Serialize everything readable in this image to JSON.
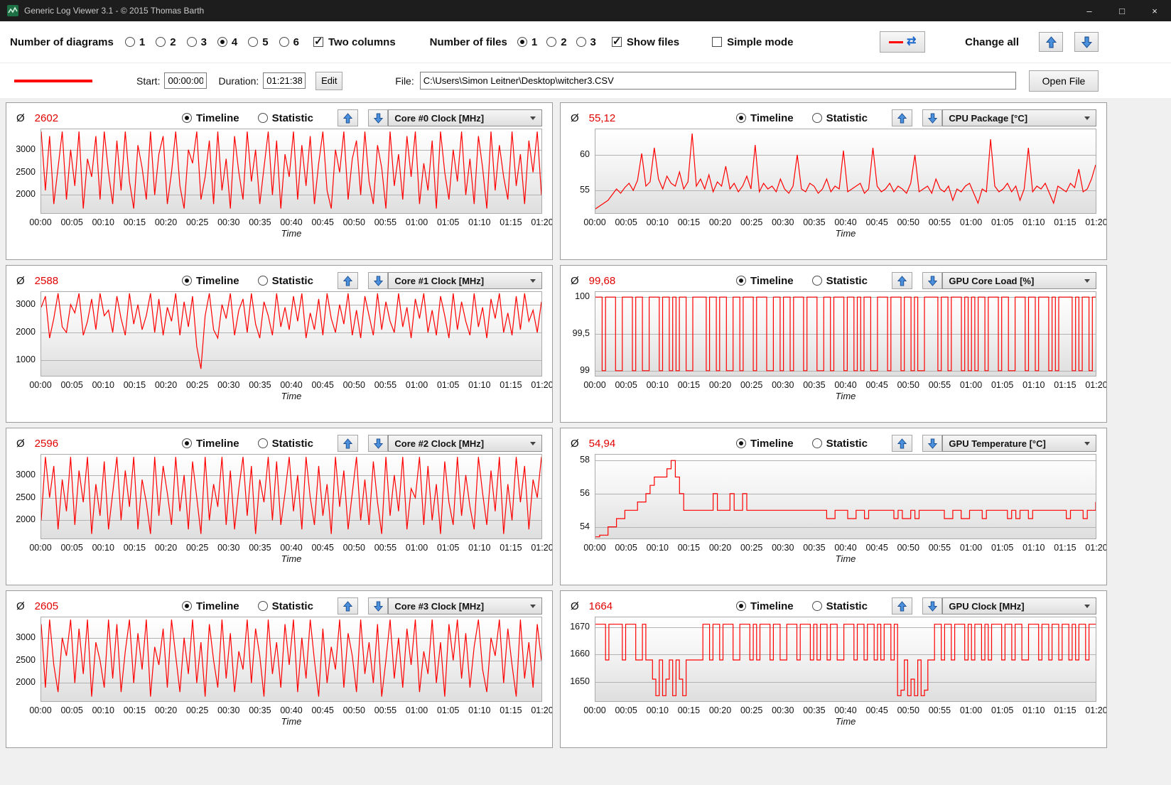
{
  "window": {
    "title": "Generic Log Viewer 3.1 - © 2015 Thomas Barth",
    "controls": {
      "minimize": "–",
      "maximize": "□",
      "close": "×"
    }
  },
  "icons": {
    "change_all_sync": "⇄"
  },
  "toolbar": {
    "diagrams_label": "Number of diagrams",
    "diagram_options": [
      "1",
      "2",
      "3",
      "4",
      "5",
      "6"
    ],
    "diagrams_selected": "4",
    "two_columns": "Two columns",
    "files_label": "Number of files",
    "file_options": [
      "1",
      "2",
      "3"
    ],
    "files_selected": "1",
    "show_files": "Show files",
    "simple_mode": "Simple mode",
    "change_all": "Change all"
  },
  "filebar": {
    "start_label": "Start:",
    "start_value": "00:00:00",
    "duration_label": "Duration:",
    "duration_value": "01:21:38",
    "edit_button": "Edit",
    "file_label": "File:",
    "file_path": "C:\\Users\\Simon Leitner\\Desktop\\witcher3.CSV",
    "open_button": "Open File",
    "file_color": "#ff0000"
  },
  "panel_labels": {
    "avg_symbol": "Ø",
    "timeline": "Timeline",
    "statistic": "Statistic"
  },
  "chart_common": {
    "series_color": "#ff0000",
    "xlabel": "Time",
    "x_ticks": [
      "00:00",
      "00:05",
      "00:10",
      "00:15",
      "00:20",
      "00:25",
      "00:30",
      "00:35",
      "00:40",
      "00:45",
      "00:50",
      "00:55",
      "01:00",
      "01:05",
      "01:10",
      "01:15",
      "01:20"
    ]
  },
  "chart_data": [
    {
      "type": "line",
      "metric": "Core #0 Clock [MHz]",
      "average": "2602",
      "y_min": 1600,
      "y_max": 3450,
      "step": false,
      "y_ticks": [
        {
          "v": 3000,
          "label": "3000"
        },
        {
          "v": 2500,
          "label": "2500"
        },
        {
          "v": 2000,
          "label": "2000"
        }
      ],
      "values": [
        3400,
        2100,
        3300,
        1800,
        2600,
        3400,
        1900,
        3000,
        2200,
        3400,
        1700,
        2800,
        2400,
        3300,
        1900,
        3400,
        2500,
        1800,
        3200,
        2100,
        3400,
        2300,
        1700,
        3100,
        2600,
        1900,
        3400,
        2000,
        2900,
        3300,
        1800,
        2500,
        3400,
        2200,
        1700,
        3000,
        2700,
        3400,
        1900,
        2400,
        3200,
        1800,
        3400,
        2100,
        2800,
        1700,
        3300,
        2500,
        1900,
        3400,
        2300,
        3000,
        1800,
        2600,
        3400,
        2000,
        3200,
        1700,
        2900,
        2400,
        3400,
        1900,
        3100,
        2200,
        3300,
        1800,
        2700,
        3400,
        2100,
        1700,
        3000,
        2500,
        3400,
        1900,
        2800,
        3200,
        2000,
        3400,
        2300,
        1800,
        3100,
        2600,
        1700,
        3400,
        2200,
        2900,
        1900,
        3300,
        2400,
        3400,
        1800,
        2700,
        2100,
        3200,
        1700,
        3400,
        2500,
        1900,
        3000,
        2300,
        3400,
        2000,
        2800,
        1800,
        3300,
        2600,
        1700,
        3400,
        2100,
        3100,
        2400,
        1900,
        3400,
        2200,
        2900,
        1800,
        3200,
        2500,
        3400,
        2000
      ]
    },
    {
      "type": "line",
      "metric": "CPU Package [°C]",
      "average": "55,12",
      "y_min": 51.8,
      "y_max": 63.6,
      "step": false,
      "y_ticks": [
        {
          "v": 60,
          "label": "60"
        },
        {
          "v": 55,
          "label": "55"
        }
      ],
      "values": [
        52.4,
        52.8,
        53.2,
        53.6,
        54.4,
        55.2,
        54.6,
        55.4,
        56.0,
        55.0,
        56.4,
        60.2,
        55.6,
        56.2,
        61.0,
        56.6,
        55.2,
        57.0,
        56.0,
        55.6,
        57.6,
        55.2,
        56.2,
        63.0,
        55.6,
        56.6,
        55.2,
        57.2,
        54.8,
        56.2,
        55.6,
        58.4,
        55.2,
        56.0,
        54.8,
        55.6,
        57.0,
        55.2,
        61.4,
        54.8,
        56.0,
        55.2,
        55.6,
        54.8,
        56.6,
        55.2,
        54.6,
        55.6,
        60.0,
        55.2,
        54.8,
        56.0,
        55.6,
        54.6,
        55.2,
        56.6,
        54.8,
        55.6,
        55.2,
        60.6,
        54.8,
        55.2,
        55.6,
        56.0,
        54.6,
        55.2,
        61.0,
        55.6,
        54.8,
        55.2,
        56.0,
        54.8,
        55.6,
        55.2,
        54.6,
        56.0,
        60.0,
        54.8,
        55.2,
        55.6,
        54.6,
        56.6,
        55.2,
        54.8,
        55.6,
        53.6,
        55.2,
        54.8,
        55.6,
        56.0,
        54.6,
        53.2,
        55.2,
        54.8,
        62.2,
        55.6,
        54.8,
        55.2,
        56.0,
        54.8,
        55.6,
        53.6,
        55.2,
        61.0,
        54.8,
        55.6,
        55.2,
        56.0,
        54.6,
        53.2,
        55.6,
        55.2,
        54.8,
        56.0,
        55.4,
        58.0,
        54.8,
        55.2,
        56.6,
        58.6
      ]
    },
    {
      "type": "line",
      "metric": "Core #1 Clock [MHz]",
      "average": "2588",
      "y_min": 450,
      "y_max": 3450,
      "step": false,
      "y_ticks": [
        {
          "v": 3000,
          "label": "3000"
        },
        {
          "v": 2000,
          "label": "2000"
        },
        {
          "v": 1000,
          "label": "1000"
        }
      ],
      "values": [
        2900,
        3300,
        1800,
        2500,
        3400,
        2200,
        2000,
        3000,
        2700,
        3400,
        1900,
        2400,
        3200,
        2100,
        3400,
        2600,
        2800,
        2000,
        3300,
        2500,
        1900,
        3400,
        2300,
        3000,
        2100,
        2600,
        3400,
        2000,
        3200,
        1900,
        2900,
        2400,
        3400,
        1900,
        3100,
        2200,
        3300,
        1500,
        700,
        2600,
        3400,
        2100,
        1800,
        3000,
        2500,
        3400,
        1900,
        2800,
        3200,
        2000,
        3400,
        2300,
        1800,
        3100,
        2600,
        1900,
        3400,
        2200,
        2900,
        2100,
        3300,
        2400,
        3400,
        1800,
        2700,
        2100,
        3200,
        1900,
        3400,
        2500,
        2000,
        3000,
        2300,
        3400,
        1900,
        2800,
        1800,
        3300,
        2600,
        1900,
        3400,
        2100,
        3100,
        2400,
        2000,
        3400,
        2200,
        2900,
        1800,
        3200,
        2500,
        3400,
        2000,
        2800,
        1900,
        3300,
        2600,
        1800,
        3400,
        2100,
        3100,
        2400,
        1900,
        3400,
        2200,
        2900,
        1800,
        3200,
        2500,
        3400,
        2000,
        2700,
        1900,
        3300,
        2100,
        3400,
        2400,
        2800,
        2000,
        3100
      ]
    },
    {
      "type": "line",
      "metric": "GPU Core Load [%]",
      "average": "99,68",
      "y_min": 98.93,
      "y_max": 100.07,
      "step": true,
      "y_ticks": [
        {
          "v": 100,
          "label": "100"
        },
        {
          "v": 99.5,
          "label": "99,5"
        },
        {
          "v": 99,
          "label": "99"
        }
      ],
      "values": [
        100,
        100,
        99,
        100,
        100,
        100,
        99,
        99,
        100,
        100,
        100,
        99,
        100,
        100,
        99,
        99,
        100,
        100,
        100,
        99,
        100,
        100,
        99,
        100,
        99,
        100,
        100,
        99,
        99,
        100,
        100,
        100,
        100,
        99,
        100,
        100,
        99,
        100,
        100,
        99,
        99,
        100,
        100,
        99,
        100,
        100,
        100,
        99,
        100,
        100,
        100,
        99,
        99,
        100,
        100,
        99,
        100,
        100,
        99,
        100,
        100,
        100,
        99,
        100,
        100,
        100,
        99,
        99,
        100,
        100,
        99,
        100,
        100,
        100,
        99,
        100,
        100,
        99,
        100,
        99,
        100,
        100,
        99,
        99,
        100,
        100,
        100,
        99,
        100,
        100,
        100,
        99,
        100,
        100,
        99,
        100,
        99,
        99,
        100,
        100,
        100,
        100,
        99,
        100,
        100,
        99,
        100,
        100,
        100,
        99,
        100,
        99,
        100,
        99,
        100,
        100,
        99,
        100,
        100,
        100,
        99,
        100,
        100,
        99,
        99,
        100,
        100,
        100,
        99,
        100,
        100,
        99,
        100,
        100,
        100,
        99,
        100,
        99,
        100,
        100,
        100,
        100,
        99,
        100,
        99,
        100,
        100,
        99,
        100,
        100
      ]
    },
    {
      "type": "line",
      "metric": "Core #2 Clock [MHz]",
      "average": "2596",
      "y_min": 1600,
      "y_max": 3450,
      "step": false,
      "y_ticks": [
        {
          "v": 3000,
          "label": "3000"
        },
        {
          "v": 2500,
          "label": "2500"
        },
        {
          "v": 2000,
          "label": "2000"
        }
      ],
      "values": [
        2000,
        3400,
        2500,
        3200,
        1800,
        2900,
        2200,
        3400,
        1900,
        3100,
        2400,
        3400,
        1700,
        2800,
        2100,
        3300,
        1800,
        2600,
        3400,
        2000,
        3100,
        2300,
        3400,
        1800,
        2900,
        2400,
        1700,
        3400,
        2100,
        3200,
        2600,
        1900,
        3400,
        2200,
        3000,
        1800,
        3300,
        2500,
        1700,
        3400,
        2000,
        2800,
        2300,
        3400,
        1900,
        3100,
        1800,
        2700,
        3400,
        2100,
        3200,
        1700,
        2900,
        2400,
        3400,
        2000,
        3300,
        1900,
        2600,
        3400,
        2200,
        3000,
        1800,
        3400,
        2500,
        1900,
        3200,
        2100,
        2800,
        1700,
        3400,
        2300,
        3100,
        1800,
        2600,
        3400,
        2000,
        2900,
        1900,
        3300,
        2400,
        1700,
        3400,
        2100,
        3000,
        2200,
        3400,
        1800,
        2700,
        2500,
        3400,
        1900,
        3200,
        2000,
        2800,
        1700,
        3300,
        2400,
        1900,
        3400,
        2100,
        3000,
        2300,
        1800,
        3400,
        2600,
        1900,
        3100,
        2200,
        3400,
        1700,
        2800,
        2000,
        3400,
        2400,
        3200,
        1800,
        2900,
        2500,
        3400
      ]
    },
    {
      "type": "line",
      "metric": "GPU Temperature [°C]",
      "average": "54,94",
      "y_min": 53.3,
      "y_max": 58.35,
      "step": true,
      "y_ticks": [
        {
          "v": 58,
          "label": "58"
        },
        {
          "v": 56,
          "label": "56"
        },
        {
          "v": 54,
          "label": "54"
        }
      ],
      "values": [
        53.4,
        53.5,
        53.5,
        54.0,
        54.0,
        54.5,
        54.5,
        55.0,
        55.0,
        55.0,
        55.5,
        55.5,
        56.0,
        56.5,
        57.0,
        57.0,
        57.0,
        57.5,
        58.0,
        57.0,
        56.0,
        55.0,
        55.0,
        55.0,
        55.0,
        55.0,
        55.0,
        55.0,
        56.0,
        55.0,
        55.0,
        55.0,
        56.0,
        55.0,
        55.0,
        56.0,
        55.0,
        55.0,
        55.0,
        55.0,
        55.0,
        55.0,
        55.0,
        55.0,
        55.0,
        55.0,
        55.0,
        55.0,
        55.0,
        55.0,
        55.0,
        55.0,
        55.0,
        55.0,
        55.0,
        54.5,
        54.5,
        55.0,
        55.0,
        55.0,
        54.5,
        54.5,
        55.0,
        55.0,
        54.5,
        55.0,
        55.0,
        55.0,
        55.0,
        55.0,
        55.0,
        54.5,
        55.0,
        54.5,
        54.5,
        55.0,
        54.5,
        55.0,
        55.0,
        55.0,
        55.0,
        55.0,
        55.0,
        54.5,
        54.5,
        55.0,
        55.0,
        54.5,
        54.5,
        55.0,
        55.0,
        55.0,
        54.5,
        55.0,
        55.0,
        55.0,
        55.0,
        55.0,
        54.5,
        55.0,
        54.5,
        55.0,
        55.0,
        54.5,
        55.0,
        55.0,
        55.0,
        55.0,
        55.0,
        55.0,
        55.0,
        55.0,
        54.5,
        55.0,
        55.0,
        55.0,
        54.5,
        55.0,
        55.0,
        55.5
      ]
    },
    {
      "type": "line",
      "metric": "Core #3 Clock [MHz]",
      "average": "2605",
      "y_min": 1600,
      "y_max": 3450,
      "step": false,
      "y_ticks": [
        {
          "v": 3000,
          "label": "3000"
        },
        {
          "v": 2500,
          "label": "2500"
        },
        {
          "v": 2000,
          "label": "2000"
        }
      ],
      "values": [
        3300,
        1900,
        3400,
        2400,
        1800,
        3000,
        2600,
        3400,
        2000,
        3200,
        2200,
        3400,
        1700,
        2900,
        2500,
        1900,
        3400,
        2100,
        3300,
        1800,
        2700,
        3400,
        2000,
        3100,
        2300,
        3400,
        1700,
        2800,
        2400,
        3200,
        1900,
        3400,
        2600,
        1800,
        3000,
        2200,
        3400,
        2000,
        2900,
        1700,
        3300,
        2500,
        1900,
        3400,
        2100,
        3100,
        1800,
        2700,
        2300,
        3400,
        2000,
        3200,
        2600,
        1700,
        3400,
        2200,
        2900,
        1900,
        3300,
        2400,
        3400,
        1800,
        3000,
        2100,
        3400,
        2500,
        1700,
        3200,
        2000,
        2800,
        2300,
        3400,
        1900,
        3100,
        2600,
        1800,
        3400,
        2200,
        2900,
        2000,
        3300,
        1700,
        2500,
        3400,
        2100,
        3000,
        1900,
        3200,
        2400,
        3400,
        1800,
        2700,
        2200,
        3400,
        2000,
        2900,
        1700,
        3300,
        2500,
        3400,
        2100,
        3100,
        1900,
        2800,
        3400,
        2300,
        1800,
        3000,
        2600,
        3400,
        2000,
        3200,
        2400,
        1700,
        3400,
        2100,
        2900,
        1900,
        3300,
        2500
      ]
    },
    {
      "type": "line",
      "metric": "GPU Clock [MHz]",
      "average": "1664",
      "y_min": 1643,
      "y_max": 1673.5,
      "step": true,
      "y_ticks": [
        {
          "v": 1670,
          "label": "1670"
        },
        {
          "v": 1660,
          "label": "1660"
        },
        {
          "v": 1650,
          "label": "1650"
        }
      ],
      "values": [
        1671,
        1671,
        1671,
        1658,
        1671,
        1671,
        1671,
        1671,
        1658,
        1671,
        1671,
        1671,
        1658,
        1658,
        1671,
        1658,
        1658,
        1651,
        1645,
        1658,
        1645,
        1651,
        1658,
        1645,
        1658,
        1651,
        1645,
        1658,
        1658,
        1658,
        1658,
        1658,
        1671,
        1671,
        1658,
        1671,
        1671,
        1658,
        1671,
        1671,
        1671,
        1658,
        1658,
        1671,
        1671,
        1671,
        1658,
        1671,
        1658,
        1671,
        1671,
        1671,
        1658,
        1671,
        1671,
        1658,
        1658,
        1671,
        1671,
        1671,
        1658,
        1671,
        1671,
        1671,
        1658,
        1671,
        1658,
        1671,
        1671,
        1658,
        1671,
        1671,
        1658,
        1658,
        1671,
        1671,
        1671,
        1658,
        1671,
        1671,
        1658,
        1671,
        1671,
        1658,
        1671,
        1658,
        1671,
        1671,
        1658,
        1671,
        1645,
        1647,
        1658,
        1645,
        1651,
        1645,
        1658,
        1645,
        1647,
        1658,
        1658,
        1671,
        1671,
        1658,
        1671,
        1671,
        1658,
        1671,
        1671,
        1671,
        1658,
        1671,
        1658,
        1671,
        1671,
        1658,
        1671,
        1658,
        1671,
        1671,
        1671,
        1658,
        1671,
        1671,
        1658,
        1671,
        1671,
        1658,
        1658,
        1671,
        1671,
        1671,
        1658,
        1671,
        1671,
        1658,
        1671,
        1671,
        1658,
        1671,
        1671,
        1658,
        1671,
        1658,
        1671,
        1671,
        1658,
        1671,
        1671,
        1671
      ]
    }
  ]
}
